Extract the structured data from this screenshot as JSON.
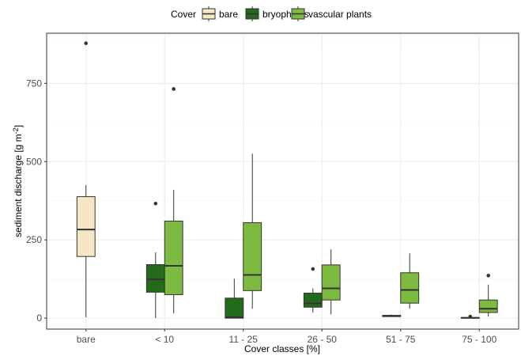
{
  "chart_data": {
    "type": "boxplot",
    "xlabel": "Cover classes [%]",
    "ylabel": "sediment discharge [g m",
    "ylabel_sup": "-2",
    "ylabel_end": "]",
    "ylim": [
      -35,
      910
    ],
    "yticks": [
      0,
      250,
      500,
      750
    ],
    "categories": [
      "bare",
      "< 10",
      "11 - 25",
      "26 - 50",
      "51 - 75",
      "75 - 100"
    ],
    "legend": {
      "title": "Cover",
      "position": "top",
      "entries": [
        "bare",
        "bryophytes",
        "vascular plants"
      ]
    },
    "grid": true,
    "colors": {
      "bare": "#f5e6c4",
      "bryophytes": "#236b1a",
      "vascular plants": "#7cbb3f",
      "median": "#333333",
      "whisker": "#333333",
      "panel_border": "#333333",
      "grid_major": "#ebebeb",
      "grid_minor": "#f5f5f5"
    },
    "series": [
      {
        "name": "bare",
        "boxes": [
          {
            "category": "bare",
            "min": 3,
            "q1": 197,
            "median": 283,
            "q3": 388,
            "max": 425,
            "outliers": [
              878
            ]
          }
        ]
      },
      {
        "name": "bryophytes",
        "boxes": [
          {
            "category": "< 10",
            "min": 0,
            "q1": 83,
            "median": 124,
            "q3": 171,
            "max": 210,
            "outliers": [
              366
            ]
          },
          {
            "category": "11 - 25",
            "min": 0,
            "q1": 0,
            "median": 3,
            "q3": 64,
            "max": 126,
            "outliers": []
          },
          {
            "category": "26 - 50",
            "min": 18,
            "q1": 35,
            "median": 47,
            "q3": 80,
            "max": 95,
            "outliers": [
              157
            ]
          },
          {
            "category": "51 - 75",
            "min": 4,
            "q1": 5,
            "median": 7,
            "q3": 9,
            "max": 11,
            "outliers": []
          },
          {
            "category": "75 - 100",
            "min": 0,
            "q1": 0,
            "median": 1,
            "q3": 2,
            "max": 3,
            "outliers": [
              5
            ]
          }
        ]
      },
      {
        "name": "vascular plants",
        "boxes": [
          {
            "category": "< 10",
            "min": 15,
            "q1": 75,
            "median": 167,
            "q3": 310,
            "max": 410,
            "outliers": [
              732
            ]
          },
          {
            "category": "11 - 25",
            "min": 30,
            "q1": 88,
            "median": 138,
            "q3": 305,
            "max": 525,
            "outliers": []
          },
          {
            "category": "26 - 50",
            "min": 12,
            "q1": 58,
            "median": 95,
            "q3": 170,
            "max": 220,
            "outliers": []
          },
          {
            "category": "51 - 75",
            "min": 30,
            "q1": 48,
            "median": 90,
            "q3": 145,
            "max": 207,
            "outliers": []
          },
          {
            "category": "75 - 100",
            "min": 5,
            "q1": 18,
            "median": 30,
            "q3": 58,
            "max": 107,
            "outliers": [
              136
            ]
          }
        ]
      }
    ]
  }
}
